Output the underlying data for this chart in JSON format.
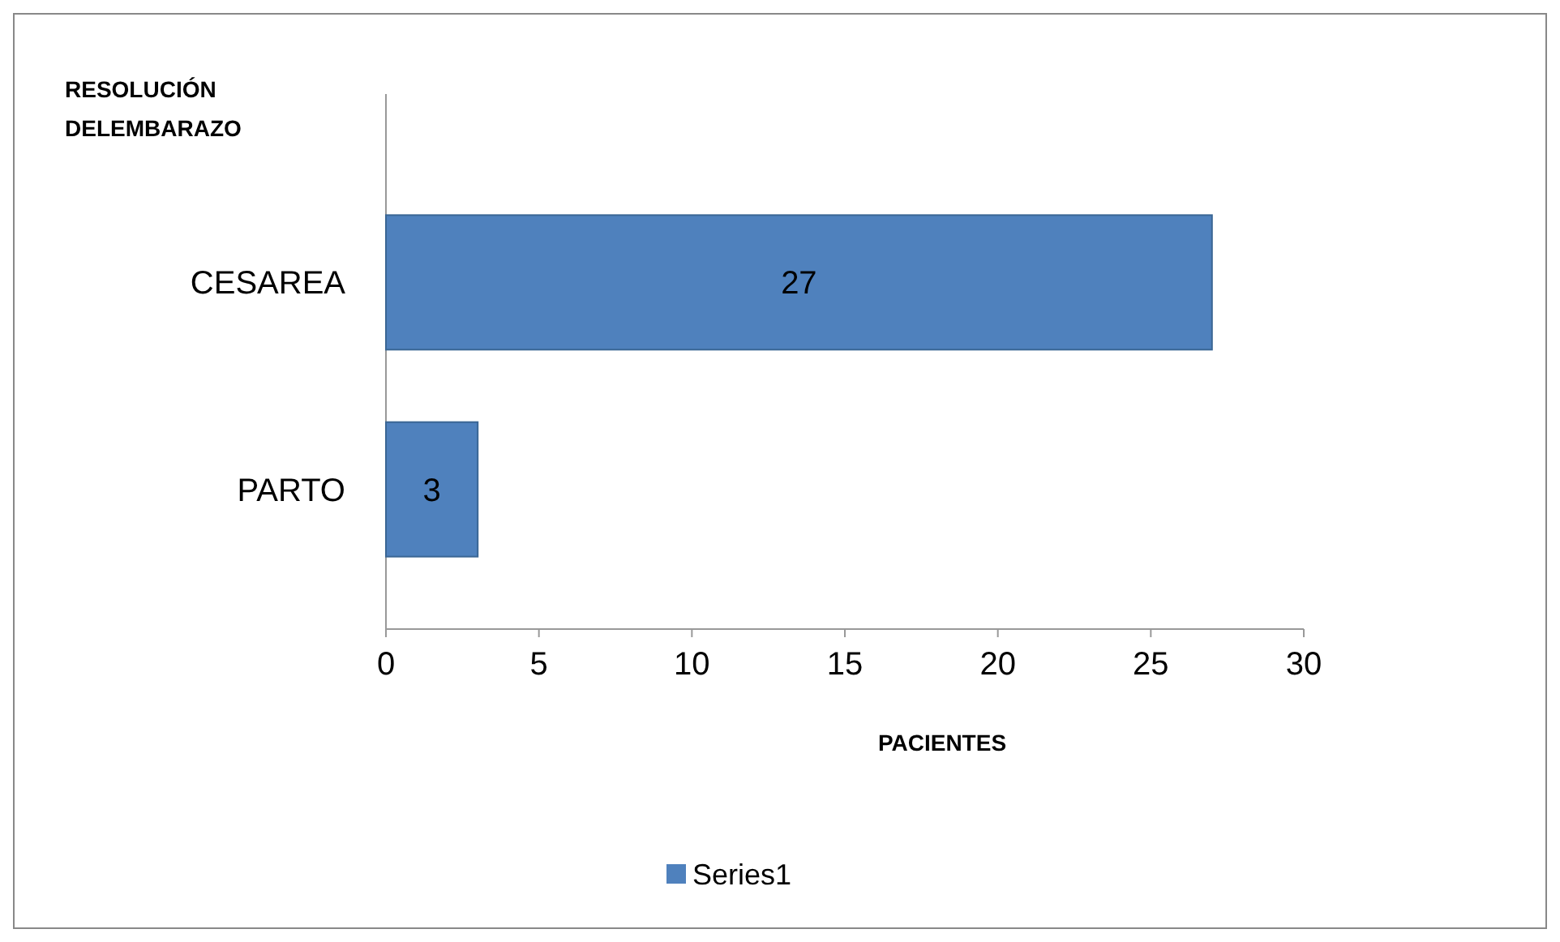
{
  "chart_data": {
    "type": "bar",
    "orientation": "horizontal",
    "ylabel": "RESOLUCIÓN DELEMBARAZO",
    "xlabel": "PACIENTES",
    "categories": [
      "CESAREA",
      "PARTO"
    ],
    "series": [
      {
        "name": "Series1",
        "color": "#4f81bd",
        "values": [
          27,
          3
        ]
      }
    ],
    "xlim": [
      0,
      30
    ],
    "xticks": [
      0,
      5,
      10,
      15,
      20,
      25,
      30
    ],
    "data_labels": true,
    "legend": "bottom",
    "grid": false
  }
}
